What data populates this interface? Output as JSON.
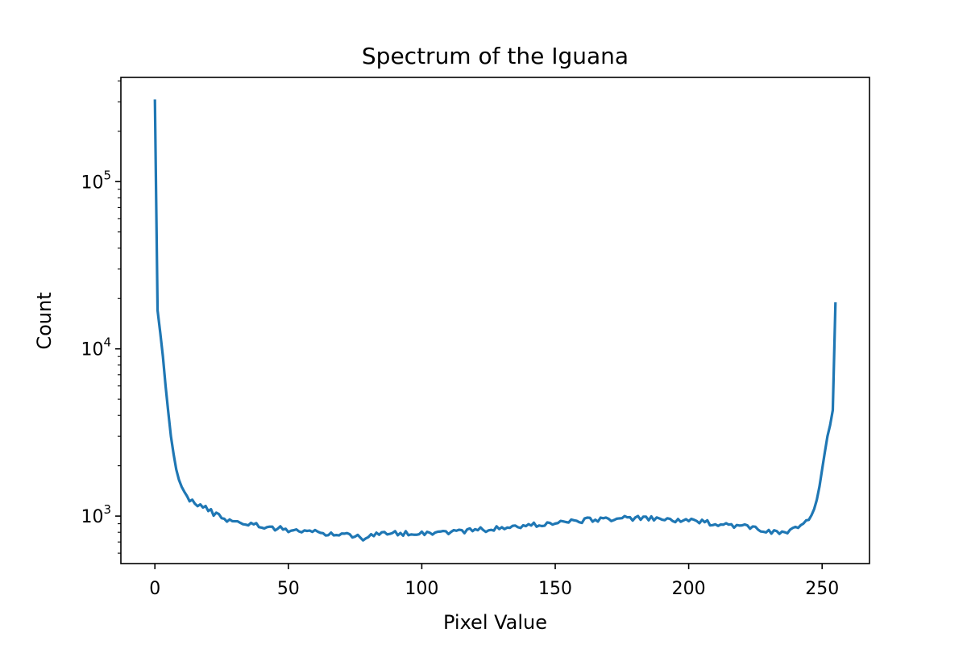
{
  "chart_data": {
    "type": "line",
    "title": "Spectrum of the Iguana",
    "xlabel": "Pixel Value",
    "ylabel": "Count",
    "xlim": [
      -12.75,
      267.75
    ],
    "ylim": [
      520,
      420000
    ],
    "yscale": "log",
    "grid": false,
    "x_ticks": [
      0,
      50,
      100,
      150,
      200,
      250
    ],
    "x_tick_labels": [
      "0",
      "50",
      "100",
      "150",
      "200",
      "250"
    ],
    "y_ticks": [
      1000,
      10000,
      100000
    ],
    "y_tick_labels": [
      {
        "base": "10",
        "exp": "3"
      },
      {
        "base": "10",
        "exp": "4"
      },
      {
        "base": "10",
        "exp": "5"
      }
    ],
    "line_color": "#1f77b4",
    "series": [
      {
        "anchors": [
          [
            0,
            310000
          ],
          [
            1,
            17000
          ],
          [
            2,
            12500
          ],
          [
            3,
            9000
          ],
          [
            4,
            6000
          ],
          [
            5,
            4200
          ],
          [
            6,
            3000
          ],
          [
            7,
            2350
          ],
          [
            8,
            1900
          ],
          [
            9,
            1650
          ],
          [
            10,
            1500
          ],
          [
            11,
            1400
          ],
          [
            12,
            1320
          ],
          [
            13,
            1270
          ],
          [
            14,
            1230
          ],
          [
            15,
            1190
          ],
          [
            16,
            1170
          ],
          [
            18,
            1140
          ],
          [
            20,
            1090
          ],
          [
            22,
            1040
          ],
          [
            25,
            990
          ],
          [
            28,
            940
          ],
          [
            30,
            930
          ],
          [
            35,
            900
          ],
          [
            40,
            870
          ],
          [
            45,
            850
          ],
          [
            50,
            830
          ],
          [
            55,
            815
          ],
          [
            60,
            800
          ],
          [
            65,
            785
          ],
          [
            70,
            775
          ],
          [
            75,
            770
          ],
          [
            78,
            740
          ],
          [
            80,
            760
          ],
          [
            85,
            780
          ],
          [
            90,
            790
          ],
          [
            95,
            790
          ],
          [
            100,
            795
          ],
          [
            105,
            800
          ],
          [
            110,
            805
          ],
          [
            115,
            815
          ],
          [
            120,
            825
          ],
          [
            125,
            835
          ],
          [
            130,
            845
          ],
          [
            135,
            860
          ],
          [
            140,
            880
          ],
          [
            145,
            895
          ],
          [
            150,
            910
          ],
          [
            155,
            925
          ],
          [
            160,
            940
          ],
          [
            165,
            955
          ],
          [
            170,
            965
          ],
          [
            175,
            970
          ],
          [
            180,
            970
          ],
          [
            185,
            965
          ],
          [
            190,
            955
          ],
          [
            195,
            945
          ],
          [
            200,
            935
          ],
          [
            205,
            920
          ],
          [
            210,
            905
          ],
          [
            215,
            890
          ],
          [
            220,
            870
          ],
          [
            225,
            850
          ],
          [
            230,
            810
          ],
          [
            233,
            790
          ],
          [
            236,
            800
          ],
          [
            238,
            810
          ],
          [
            240,
            840
          ],
          [
            242,
            880
          ],
          [
            244,
            930
          ],
          [
            245,
            960
          ],
          [
            246,
            1000
          ],
          [
            247,
            1100
          ],
          [
            248,
            1250
          ],
          [
            249,
            1500
          ],
          [
            250,
            1900
          ],
          [
            251,
            2400
          ],
          [
            252,
            3000
          ],
          [
            253,
            3500
          ],
          [
            254,
            4300
          ],
          [
            255,
            19000
          ]
        ],
        "jitter": 0.035
      }
    ]
  }
}
